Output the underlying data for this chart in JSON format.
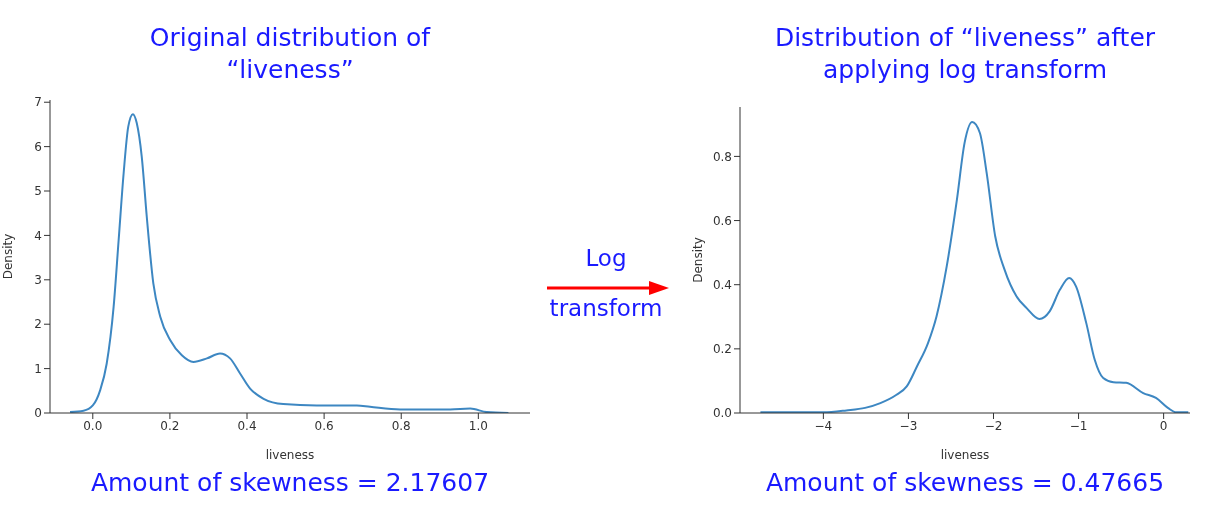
{
  "chart_data": [
    {
      "type": "line",
      "title": "Original distribution of “liveness”",
      "xlabel": "liveness",
      "ylabel": "Density",
      "xlim": [
        -0.111,
        1.134
      ],
      "ylim": [
        0,
        7.05
      ],
      "xticks": [
        {
          "value": 0,
          "label": "0.0"
        },
        0.2,
        0.4,
        0.6,
        0.8,
        {
          "value": 1,
          "label": "1.0"
        }
      ],
      "yticks": [
        0,
        1,
        2,
        3,
        4,
        5,
        6,
        7
      ],
      "grid": false,
      "annotations": [
        "Amount of skewness = 2.17607"
      ],
      "x": [
        -0.059,
        -0.024,
        0.0,
        0.019,
        0.036,
        0.054,
        0.067,
        0.08,
        0.092,
        0.104,
        0.114,
        0.127,
        0.14,
        0.157,
        0.175,
        0.201,
        0.231,
        0.261,
        0.296,
        0.33,
        0.356,
        0.382,
        0.408,
        0.443,
        0.494,
        0.581,
        0.685,
        0.719,
        0.797,
        0.927,
        0.979,
        1.022,
        1.078
      ],
      "series": [
        {
          "color": "#3d87c2",
          "values": [
            0.02,
            0.05,
            0.17,
            0.51,
            1.11,
            2.39,
            3.89,
            5.4,
            6.45,
            6.73,
            6.53,
            5.77,
            4.42,
            2.92,
            2.17,
            1.64,
            1.3,
            1.15,
            1.23,
            1.34,
            1.23,
            0.89,
            0.55,
            0.32,
            0.2,
            0.17,
            0.17,
            0.14,
            0.08,
            0.08,
            0.1,
            0.02,
            0.0
          ]
        }
      ]
    },
    {
      "type": "other",
      "annotations": [
        "Log",
        "transform"
      ]
    },
    {
      "type": "line",
      "title": "Distribution of “liveness” after applying log transform",
      "xlabel": "liveness",
      "ylabel": "Density",
      "xlim": [
        -4.98,
        0.31
      ],
      "ylim": [
        0,
        0.954
      ],
      "xticks": [
        {
          "value": -4,
          "label": "−4"
        },
        {
          "value": -3,
          "label": "−3"
        },
        {
          "value": -2,
          "label": "−2"
        },
        {
          "value": -1,
          "label": "−1"
        },
        0
      ],
      "yticks": [
        {
          "value": 0,
          "label": "0.0"
        },
        0.2,
        0.4,
        0.6,
        0.8
      ],
      "grid": false,
      "annotations": [
        "Amount of skewness = 0.47665"
      ],
      "x": [
        -4.74,
        -4.0,
        -3.73,
        -3.51,
        -3.33,
        -3.14,
        -3.02,
        -2.9,
        -2.77,
        -2.67,
        -2.55,
        -2.43,
        -2.34,
        -2.25,
        -2.16,
        -2.08,
        -1.98,
        -1.87,
        -1.73,
        -1.61,
        -1.46,
        -1.34,
        -1.22,
        -1.11,
        -1.03,
        -0.91,
        -0.81,
        -0.71,
        -0.59,
        -0.44,
        -0.24,
        -0.09,
        0.05,
        0.15,
        0.29
      ],
      "series": [
        {
          "color": "#3d87c2",
          "values": [
            0.002,
            0.002,
            0.008,
            0.016,
            0.031,
            0.057,
            0.083,
            0.145,
            0.218,
            0.301,
            0.457,
            0.665,
            0.842,
            0.907,
            0.873,
            0.748,
            0.551,
            0.447,
            0.364,
            0.327,
            0.293,
            0.317,
            0.384,
            0.421,
            0.395,
            0.281,
            0.166,
            0.109,
            0.096,
            0.094,
            0.062,
            0.047,
            0.016,
            0.002,
            0.002
          ]
        }
      ]
    }
  ]
}
